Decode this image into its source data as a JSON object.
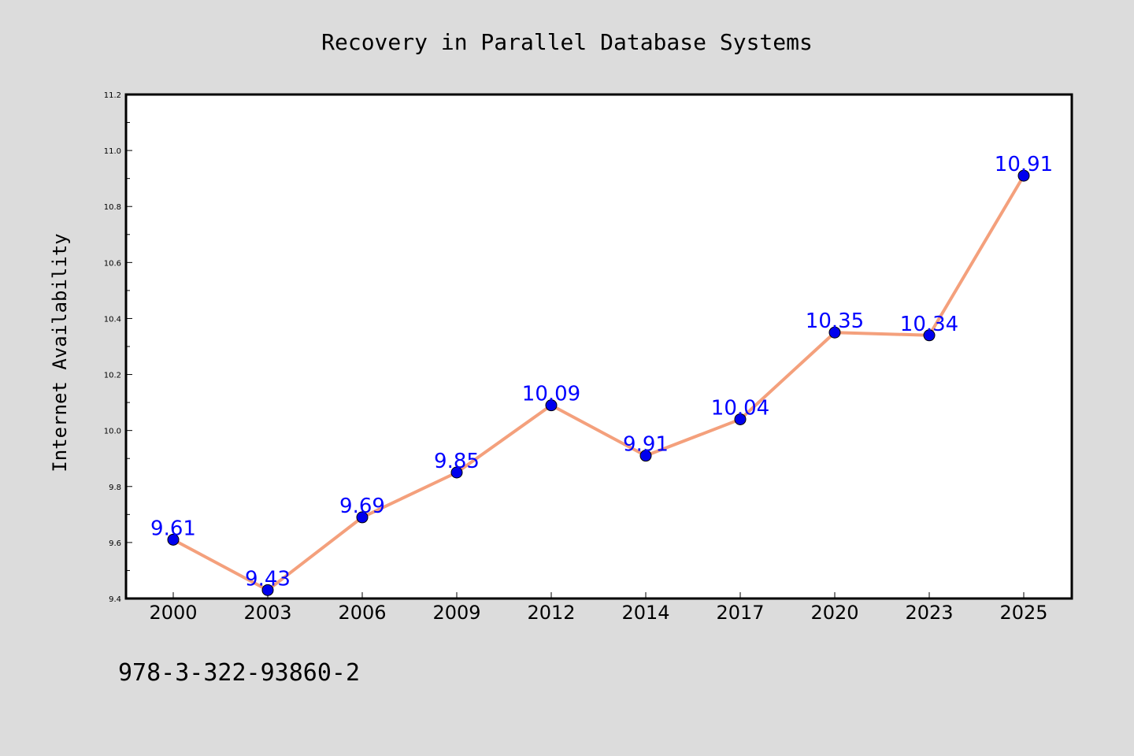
{
  "chart_data": {
    "type": "line",
    "title": "Recovery in Parallel Database Systems",
    "xlabel": "",
    "ylabel": "Internet Availability",
    "categories": [
      "2000",
      "2003",
      "2006",
      "2009",
      "2012",
      "2014",
      "2017",
      "2020",
      "2023",
      "2025"
    ],
    "series": [
      {
        "values": [
          9.61,
          9.43,
          9.69,
          9.85,
          10.09,
          9.91,
          10.04,
          10.35,
          10.34,
          10.91
        ],
        "data_labels": [
          "9.61",
          "9.43",
          "9.69",
          "9.85",
          "10.09",
          "9.91",
          "10.04",
          "10.35",
          "10.34",
          "10.91"
        ],
        "line_color": "#f4a07c",
        "marker_color": "#0000ee",
        "label_color": "#0000ff"
      }
    ],
    "ylim": [
      9.4,
      11.2
    ],
    "yticks": [
      "9.4",
      "9.6",
      "9.8",
      "10.0",
      "10.2",
      "10.4",
      "10.6",
      "10.8",
      "11.0",
      "11.2"
    ],
    "grid": false,
    "legend": "none"
  },
  "footnote": "978-3-322-93860-2",
  "colors": {
    "background": "#dcdcdc",
    "plot_background": "#ffffff"
  }
}
